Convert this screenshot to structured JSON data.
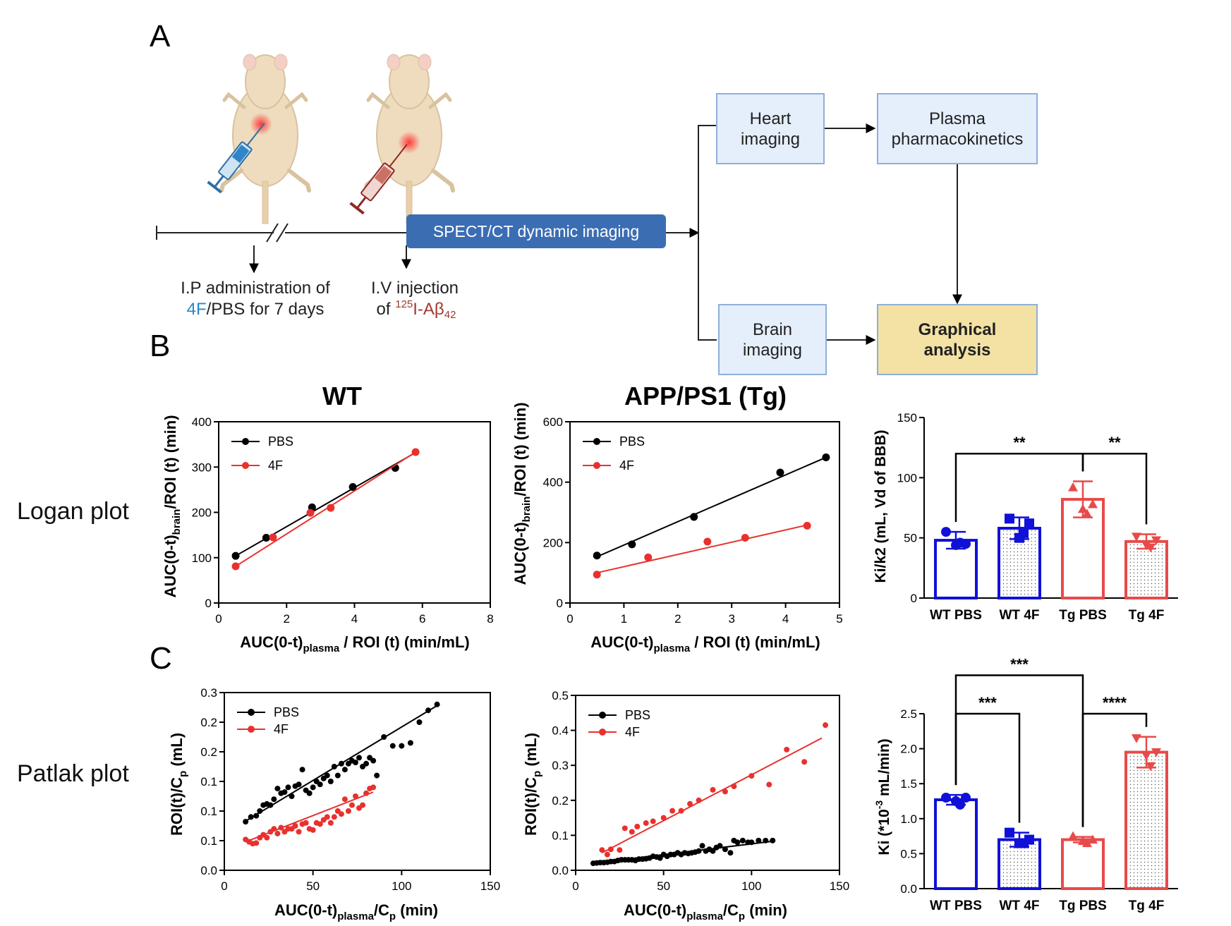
{
  "panel_labels": {
    "A": "A",
    "B": "B",
    "C": "C"
  },
  "colors": {
    "black": "#000000",
    "red": "#e8312e",
    "blue": "#1010d8",
    "pink": "#e84a4a",
    "flow_box": "#e5eefb",
    "flow_border": "#8fb0d8",
    "graphical_box": "#f3e2a4",
    "spect_bar": "#3b6db3",
    "syringe_blue": "#2e6fa6",
    "syringe_red": "#8e2a24",
    "text_blue": "#2a86c8",
    "text_red": "#a2392f"
  },
  "schematic": {
    "ip_label_line1": "I.P administration of",
    "ip_label_4f": "4F",
    "ip_label_rest": "/PBS for 7 days",
    "iv_label_line1": "I.V injection",
    "iv_of": "of ",
    "iv_super": "125",
    "iv_compound": "I-Aβ",
    "iv_sub": "42",
    "spect": "SPECT/CT dynamic imaging",
    "heart_l1": "Heart",
    "heart_l2": "imaging",
    "plasma_l1": "Plasma",
    "plasma_l2": "pharmacokinetics",
    "brain_l1": "Brain",
    "brain_l2": "imaging",
    "graph_l1": "Graphical",
    "graph_l2": "analysis",
    "icons": [
      "mouse-icon",
      "syringe-icon"
    ]
  },
  "row_labels": {
    "logan": "Logan plot",
    "patlak": "Patlak plot"
  },
  "chart_data": [
    {
      "id": "logan_wt",
      "type": "scatter",
      "title": "WT",
      "xlabel_main": "AUC(0-t)",
      "xlabel_sub": "plasma",
      "xlabel_rest": " / ROI (t) (min/mL)",
      "ylabel_main": "AUC(0-t)",
      "ylabel_sub": "brain",
      "ylabel_rest": "/ROI (t) (min)",
      "xlim": [
        0,
        8
      ],
      "ylim": [
        0,
        400
      ],
      "xticks": [
        "0",
        "2",
        "4",
        "6",
        "8"
      ],
      "yticks": [
        "0",
        "100",
        "200",
        "300",
        "400"
      ],
      "legend": "top-left",
      "series": [
        {
          "name": "PBS",
          "color": "black",
          "x": [
            0.5,
            1.4,
            2.75,
            3.95,
            5.2
          ],
          "y": [
            104,
            144,
            211,
            256,
            298
          ],
          "fit": [
            [
              0.5,
              104
            ],
            [
              5.8,
              332
            ]
          ]
        },
        {
          "name": "4F",
          "color": "red",
          "x": [
            0.5,
            1.6,
            2.7,
            3.3,
            5.8
          ],
          "y": [
            81,
            145,
            199,
            210,
            333
          ],
          "fit": [
            [
              0.5,
              81
            ],
            [
              5.8,
              333
            ]
          ]
        }
      ]
    },
    {
      "id": "logan_tg",
      "type": "scatter",
      "title": "APP/PS1 (Tg)",
      "xlabel_main": "AUC(0-t)",
      "xlabel_sub": "plasma",
      "xlabel_rest": " / ROI (t) (min/mL)",
      "ylabel_main": "AUC(0-t)",
      "ylabel_sub": "brain",
      "ylabel_rest": "/ROI (t) (min)",
      "xlim": [
        0,
        5
      ],
      "ylim": [
        0,
        600
      ],
      "xticks": [
        "0",
        "1",
        "2",
        "3",
        "4",
        "5"
      ],
      "yticks": [
        "0",
        "200",
        "400",
        "600"
      ],
      "legend": "top-left",
      "series": [
        {
          "name": "PBS",
          "color": "black",
          "x": [
            0.5,
            1.15,
            2.3,
            3.9,
            4.75
          ],
          "y": [
            157,
            194,
            285,
            432,
            482
          ],
          "fit": [
            [
              0.5,
              153
            ],
            [
              4.75,
              482
            ]
          ]
        },
        {
          "name": "4F",
          "color": "red",
          "x": [
            0.5,
            1.45,
            2.55,
            3.25,
            4.4
          ],
          "y": [
            94,
            151,
            203,
            216,
            256
          ],
          "fit": [
            [
              0.5,
              100
            ],
            [
              4.4,
              258
            ]
          ]
        }
      ]
    },
    {
      "id": "logan_bar",
      "type": "bar",
      "title": "",
      "ylabel": "Ki/k2 (mL, Vd of BBB)",
      "ylim": [
        0,
        150
      ],
      "yticks": [
        "0",
        "50",
        "100",
        "150"
      ],
      "categories": [
        "WT PBS",
        "WT 4F",
        "Tg PBS",
        "Tg 4F"
      ],
      "values": [
        48,
        58,
        82,
        47
      ],
      "sd": [
        7,
        9,
        15,
        6
      ],
      "points": [
        [
          55,
          45,
          44,
          46
        ],
        [
          66,
          62,
          50,
          54
        ],
        [
          92,
          78,
          74,
          70
        ],
        [
          51,
          48,
          44,
          42
        ]
      ],
      "markers": [
        "circle",
        "square",
        "triangle",
        "triangle-down"
      ],
      "bar_colors": [
        "blue",
        "blue",
        "pink",
        "pink"
      ],
      "hatched": [
        false,
        true,
        false,
        true
      ],
      "significance": [
        {
          "from": 0,
          "to": 2,
          "label": "**",
          "level": 120
        },
        {
          "from": 2,
          "to": 3,
          "label": "**",
          "level": 120
        }
      ]
    },
    {
      "id": "patlak_wt",
      "type": "scatter",
      "title": "",
      "xlabel_main": "AUC(0-t)",
      "xlabel_sub": "plasma",
      "xlabel_rest": "/C",
      "xlabel_sub2": "p",
      "xlabel_tail": " (min)",
      "ylabel_main": "ROI(t)/C",
      "ylabel_sub": "p",
      "ylabel_rest": " (mL)",
      "xlim": [
        0,
        150
      ],
      "ylim": [
        0,
        0.3
      ],
      "xticks": [
        "0",
        "50",
        "100",
        "150"
      ],
      "yticks": [
        "0.0",
        "0.1",
        "0.1",
        "0.1",
        "0.2",
        "0.2",
        "0.3"
      ],
      "legend": "top-left",
      "series": [
        {
          "name": "PBS",
          "color": "black",
          "x": [
            12,
            15,
            18,
            20,
            22,
            24,
            26,
            28,
            30,
            32,
            34,
            36,
            38,
            40,
            42,
            44,
            46,
            48,
            50,
            52,
            54,
            56,
            58,
            60,
            62,
            64,
            66,
            68,
            70,
            72,
            74,
            76,
            78,
            80,
            82,
            84,
            86,
            90,
            95,
            100,
            105,
            110,
            115,
            120
          ],
          "y": [
            0.082,
            0.09,
            0.092,
            0.1,
            0.11,
            0.112,
            0.11,
            0.12,
            0.138,
            0.13,
            0.132,
            0.14,
            0.125,
            0.142,
            0.145,
            0.17,
            0.135,
            0.13,
            0.14,
            0.15,
            0.145,
            0.155,
            0.16,
            0.15,
            0.175,
            0.16,
            0.18,
            0.17,
            0.18,
            0.185,
            0.182,
            0.19,
            0.175,
            0.18,
            0.19,
            0.185,
            0.16,
            0.225,
            0.21,
            0.21,
            0.215,
            0.25,
            0.27,
            0.28
          ],
          "fit": [
            [
              12,
              0.083
            ],
            [
              120,
              0.278
            ]
          ]
        },
        {
          "name": "4F",
          "color": "red",
          "x": [
            12,
            14,
            16,
            18,
            20,
            22,
            24,
            26,
            28,
            30,
            32,
            34,
            36,
            38,
            40,
            42,
            44,
            46,
            48,
            50,
            52,
            54,
            56,
            58,
            60,
            62,
            64,
            66,
            68,
            70,
            72,
            74,
            76,
            78,
            80,
            82,
            84
          ],
          "y": [
            0.052,
            0.048,
            0.045,
            0.046,
            0.055,
            0.06,
            0.055,
            0.065,
            0.07,
            0.062,
            0.072,
            0.065,
            0.07,
            0.07,
            0.075,
            0.065,
            0.078,
            0.08,
            0.07,
            0.068,
            0.08,
            0.078,
            0.085,
            0.09,
            0.08,
            0.09,
            0.1,
            0.095,
            0.12,
            0.1,
            0.11,
            0.125,
            0.105,
            0.11,
            0.13,
            0.138,
            0.14
          ],
          "fit": [
            [
              12,
              0.048
            ],
            [
              84,
              0.132
            ]
          ]
        }
      ]
    },
    {
      "id": "patlak_tg",
      "type": "scatter",
      "title": "",
      "xlabel_main": "AUC(0-t)",
      "xlabel_sub": "plasma",
      "xlabel_rest": "/C",
      "xlabel_sub2": "p",
      "xlabel_tail": " (min)",
      "ylabel_main": "ROI(t)/C",
      "ylabel_sub": "p",
      "ylabel_rest": " (mL)",
      "xlim": [
        0,
        150
      ],
      "ylim": [
        0,
        0.5
      ],
      "xticks": [
        "0",
        "50",
        "100",
        "150"
      ],
      "yticks": [
        "0.0",
        "0.1",
        "0.2",
        "0.3",
        "0.4",
        "0.5"
      ],
      "legend": "top-left",
      "series": [
        {
          "name": "PBS",
          "color": "black",
          "x": [
            10,
            12,
            14,
            16,
            18,
            20,
            22,
            24,
            26,
            28,
            30,
            32,
            34,
            36,
            38,
            40,
            42,
            44,
            46,
            48,
            50,
            52,
            54,
            56,
            58,
            60,
            62,
            64,
            66,
            68,
            70,
            72,
            74,
            76,
            78,
            80,
            82,
            85,
            88,
            90,
            92,
            95,
            98,
            100,
            104,
            108,
            112
          ],
          "y": [
            0.02,
            0.021,
            0.022,
            0.022,
            0.023,
            0.025,
            0.025,
            0.028,
            0.03,
            0.03,
            0.03,
            0.03,
            0.028,
            0.032,
            0.032,
            0.033,
            0.035,
            0.04,
            0.038,
            0.035,
            0.045,
            0.04,
            0.045,
            0.045,
            0.05,
            0.045,
            0.05,
            0.048,
            0.05,
            0.052,
            0.055,
            0.07,
            0.055,
            0.06,
            0.055,
            0.065,
            0.07,
            0.06,
            0.05,
            0.085,
            0.08,
            0.085,
            0.08,
            0.08,
            0.085,
            0.085,
            0.085
          ],
          "fit": [
            [
              10,
              0.02
            ],
            [
              112,
              0.083
            ]
          ]
        },
        {
          "name": "4F",
          "color": "red",
          "x": [
            15,
            18,
            20,
            25,
            28,
            32,
            35,
            40,
            44,
            50,
            55,
            60,
            65,
            70,
            78,
            85,
            90,
            100,
            110,
            120,
            130,
            142
          ],
          "y": [
            0.058,
            0.045,
            0.06,
            0.058,
            0.12,
            0.11,
            0.125,
            0.135,
            0.14,
            0.15,
            0.17,
            0.17,
            0.19,
            0.2,
            0.23,
            0.225,
            0.24,
            0.27,
            0.245,
            0.345,
            0.31,
            0.415
          ],
          "fit": [
            [
              15,
              0.05
            ],
            [
              140,
              0.378
            ]
          ]
        }
      ]
    },
    {
      "id": "patlak_bar",
      "type": "bar",
      "title": "",
      "ylabel_main": "Ki (*10",
      "ylabel_sup": "-3",
      "ylabel_rest": " mL/min)",
      "ylim": [
        0,
        2.5
      ],
      "yticks": [
        "0.0",
        "0.5",
        "1.0",
        "1.5",
        "2.0",
        "2.5"
      ],
      "categories": [
        "WT PBS",
        "WT 4F",
        "Tg PBS",
        "Tg 4F"
      ],
      "values": [
        1.27,
        0.7,
        0.7,
        1.95
      ],
      "sd": [
        0.07,
        0.1,
        0.04,
        0.22
      ],
      "points": [
        [
          1.3,
          1.3,
          1.25,
          1.2
        ],
        [
          0.8,
          0.7,
          0.65,
          0.65
        ],
        [
          0.75,
          0.7,
          0.68,
          0.65
        ],
        [
          2.15,
          1.95,
          1.9,
          1.75
        ]
      ],
      "markers": [
        "circle",
        "square",
        "triangle",
        "triangle-down"
      ],
      "bar_colors": [
        "blue",
        "blue",
        "pink",
        "pink"
      ],
      "hatched": [
        false,
        true,
        false,
        true
      ],
      "significance": [
        {
          "from": 0,
          "to": 1,
          "label": "***",
          "level": 2.5
        },
        {
          "from": 2,
          "to": 3,
          "label": "****",
          "level": 2.5
        },
        {
          "from": 0,
          "to": 2,
          "label": "***",
          "level": 3.05
        }
      ]
    }
  ]
}
